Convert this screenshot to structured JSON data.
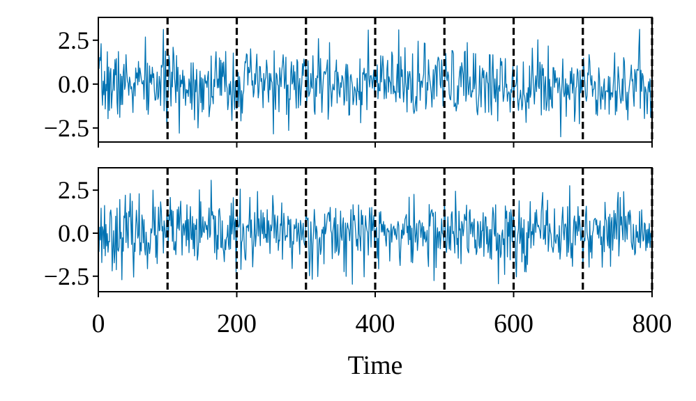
{
  "figure": {
    "xlabel": "Time",
    "sharex": true,
    "colors": {
      "series": "#0072b2",
      "changepoint": "#000000",
      "axes": "#000000"
    }
  },
  "chart_data": [
    {
      "type": "line",
      "panel": "top",
      "title": "",
      "xlabel": "",
      "ylabel": "",
      "xlim": [
        0,
        800
      ],
      "ylim": [
        -3.3,
        3.8
      ],
      "xticks": [
        0,
        200,
        400,
        600,
        800
      ],
      "xtick_labels_visible": false,
      "yticks": [
        -2.5,
        0.0,
        2.5
      ],
      "ytick_labels": [
        "−2.5",
        "0.0",
        "2.5"
      ],
      "grid": false,
      "changepoints": [
        100,
        200,
        300,
        400,
        500,
        600,
        700,
        800
      ],
      "series": [
        {
          "x_start": 0,
          "x_end": 800,
          "n_points": 801,
          "mean": 0.0,
          "std": 1.0,
          "min": -3.0,
          "max": 3.4,
          "seed": 7
        }
      ]
    },
    {
      "type": "line",
      "panel": "bottom",
      "title": "",
      "xlabel": "Time",
      "ylabel": "",
      "xlim": [
        0,
        800
      ],
      "ylim": [
        -3.4,
        3.8
      ],
      "xticks": [
        0,
        200,
        400,
        600,
        800
      ],
      "xtick_labels": [
        "0",
        "200",
        "400",
        "600",
        "800"
      ],
      "yticks": [
        -2.5,
        0.0,
        2.5
      ],
      "ytick_labels": [
        "−2.5",
        "0.0",
        "2.5"
      ],
      "grid": false,
      "changepoints": [
        100,
        200,
        300,
        400,
        500,
        600,
        700,
        800
      ],
      "series": [
        {
          "x_start": 0,
          "x_end": 800,
          "n_points": 801,
          "mean": 0.0,
          "std": 1.0,
          "min": -3.1,
          "max": 3.5,
          "seed": 23
        }
      ]
    }
  ]
}
